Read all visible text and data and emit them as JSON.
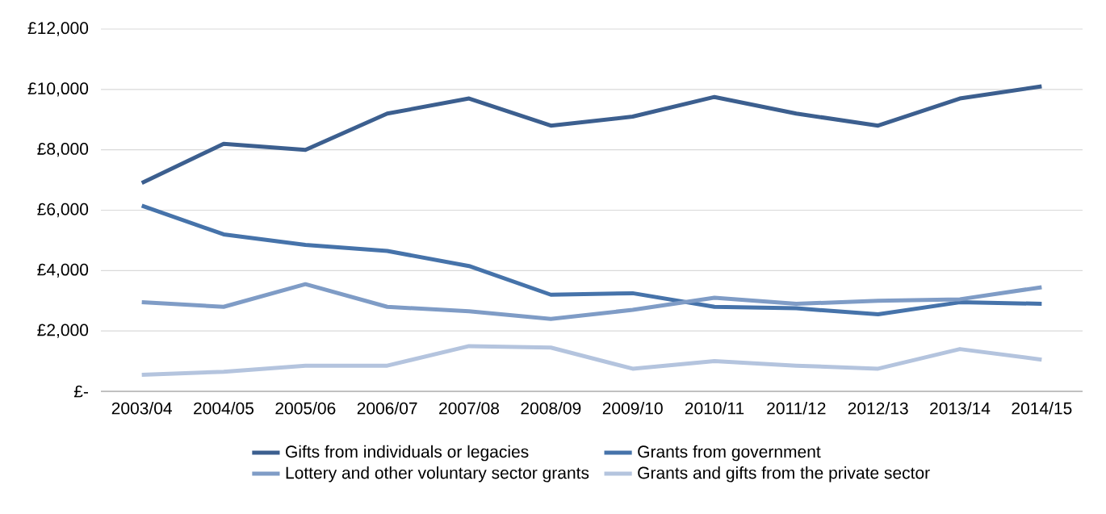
{
  "chart_data": {
    "type": "line",
    "categories": [
      "2003/04",
      "2004/05",
      "2005/06",
      "2006/07",
      "2007/08",
      "2008/09",
      "2009/10",
      "2010/11",
      "2011/12",
      "2012/13",
      "2013/14",
      "2014/15"
    ],
    "series": [
      {
        "name": "Gifts from individuals or legacies",
        "color": "#3c5f8f",
        "values": [
          6900,
          8200,
          8000,
          9200,
          9700,
          8800,
          9100,
          9750,
          9200,
          8800,
          9700,
          10100
        ]
      },
      {
        "name": "Grants from government",
        "color": "#4673aa",
        "values": [
          6150,
          5200,
          4850,
          4650,
          4150,
          3200,
          3250,
          2800,
          2750,
          2550,
          2950,
          2900
        ]
      },
      {
        "name": "Lottery and other voluntary sector grants",
        "color": "#7f9cc6",
        "values": [
          2950,
          2800,
          3550,
          2800,
          2650,
          2400,
          2700,
          3100,
          2900,
          3000,
          3050,
          3450
        ]
      },
      {
        "name": "Grants and gifts from the private sector",
        "color": "#b4c4de",
        "values": [
          550,
          650,
          850,
          850,
          1500,
          1450,
          750,
          1000,
          850,
          750,
          1400,
          1050
        ]
      }
    ],
    "ylim": [
      0,
      12000
    ],
    "yticks": [
      {
        "value": 0,
        "label": "£-"
      },
      {
        "value": 2000,
        "label": "£2,000"
      },
      {
        "value": 4000,
        "label": "£4,000"
      },
      {
        "value": 6000,
        "label": "£6,000"
      },
      {
        "value": 8000,
        "label": "£8,000"
      },
      {
        "value": 10000,
        "label": "£10,000"
      },
      {
        "value": 12000,
        "label": "£12,000"
      }
    ],
    "grid": "y",
    "legend": "bottom",
    "marker": "none",
    "line_style": "solid"
  }
}
